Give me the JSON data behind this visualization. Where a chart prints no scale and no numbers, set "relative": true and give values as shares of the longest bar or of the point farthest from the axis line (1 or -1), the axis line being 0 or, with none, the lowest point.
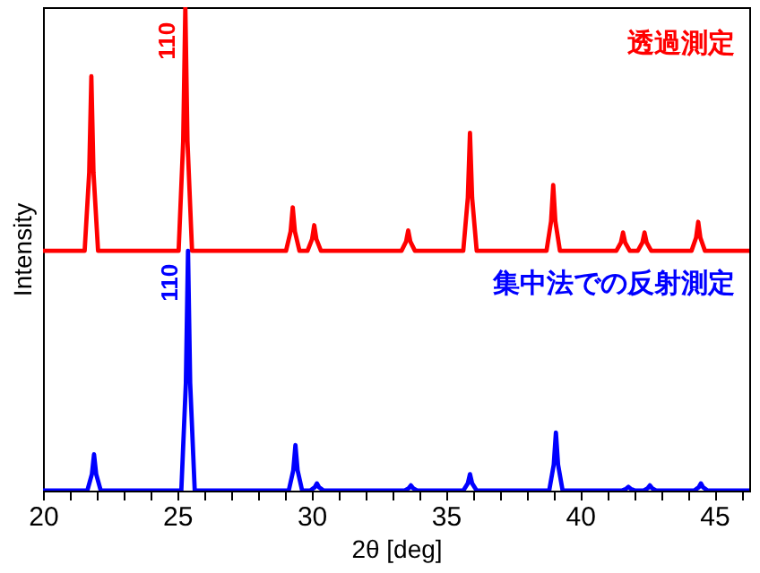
{
  "chart_data": {
    "type": "line",
    "relative": true,
    "xlabel": "2θ [deg]",
    "ylabel": "Intensity",
    "xlim": [
      20,
      46.3
    ],
    "xticks": [
      20,
      {
        "value": 21,
        "label": null
      },
      {
        "value": 22,
        "label": null
      },
      {
        "value": 23,
        "label": null
      },
      {
        "value": 24,
        "label": null
      },
      25,
      {
        "value": 26,
        "label": null
      },
      {
        "value": 27,
        "label": null
      },
      {
        "value": 28,
        "label": null
      },
      {
        "value": 29,
        "label": null
      },
      30,
      {
        "value": 31,
        "label": null
      },
      {
        "value": 32,
        "label": null
      },
      {
        "value": 33,
        "label": null
      },
      {
        "value": 34,
        "label": null
      },
      35,
      {
        "value": 36,
        "label": null
      },
      {
        "value": 37,
        "label": null
      },
      {
        "value": 38,
        "label": null
      },
      {
        "value": 39,
        "label": null
      },
      40,
      {
        "value": 41,
        "label": null
      },
      {
        "value": 42,
        "label": null
      },
      {
        "value": 43,
        "label": null
      },
      {
        "value": 44,
        "label": null
      },
      45,
      {
        "value": 46,
        "label": null
      }
    ],
    "series": [
      {
        "name": "透過測定",
        "color": "#ff0000",
        "x": [
          20,
          21.55,
          21.72,
          21.8,
          21.88,
          22.05,
          25.05,
          25.22,
          25.3,
          25.38,
          25.55,
          29.05,
          29.22,
          29.3,
          29.38,
          29.55,
          29.85,
          30.02,
          30.1,
          30.18,
          30.35,
          33.35,
          33.52,
          33.6,
          33.68,
          33.85,
          35.65,
          35.82,
          35.9,
          35.98,
          36.15,
          38.75,
          38.92,
          39.0,
          39.08,
          39.25,
          41.35,
          41.52,
          41.6,
          41.68,
          41.85,
          42.15,
          42.32,
          42.4,
          42.48,
          42.65,
          44.15,
          44.32,
          44.4,
          44.48,
          44.65,
          46.3
        ],
        "values": [
          0.496,
          0.496,
          0.658,
          0.857,
          0.658,
          0.496,
          0.496,
          0.723,
          1.0,
          0.723,
          0.496,
          0.496,
          0.536,
          0.586,
          0.536,
          0.496,
          0.496,
          0.52,
          0.549,
          0.52,
          0.496,
          0.496,
          0.515,
          0.538,
          0.515,
          0.496,
          0.496,
          0.606,
          0.74,
          0.606,
          0.496,
          0.496,
          0.557,
          0.632,
          0.557,
          0.496,
          0.496,
          0.513,
          0.534,
          0.513,
          0.496,
          0.496,
          0.513,
          0.534,
          0.513,
          0.496,
          0.496,
          0.523,
          0.556,
          0.523,
          0.496,
          0.496
        ]
      },
      {
        "name": "集中法での反射測定",
        "color": "#0000ff",
        "x": [
          20,
          21.65,
          21.82,
          21.9,
          21.98,
          22.15,
          25.15,
          25.32,
          25.4,
          25.48,
          25.65,
          29.15,
          29.32,
          29.4,
          29.48,
          29.65,
          29.95,
          30.12,
          30.2,
          30.28,
          30.45,
          33.45,
          33.62,
          33.7,
          33.78,
          33.95,
          35.65,
          35.82,
          35.9,
          35.98,
          36.15,
          38.85,
          39.02,
          39.1,
          39.18,
          39.35,
          41.55,
          41.72,
          41.8,
          41.88,
          42.05,
          42.35,
          42.52,
          42.6,
          42.68,
          42.85,
          44.25,
          44.42,
          44.5,
          44.58,
          44.75,
          46.3
        ],
        "values": [
          0,
          0,
          0.034,
          0.075,
          0.034,
          0,
          0,
          0.223,
          0.496,
          0.223,
          0,
          0,
          0.042,
          0.094,
          0.042,
          0,
          0,
          0.007,
          0.015,
          0.007,
          0,
          0,
          0.005,
          0.011,
          0.005,
          0,
          0,
          0.015,
          0.034,
          0.015,
          0,
          0,
          0.054,
          0.12,
          0.054,
          0,
          0,
          0.004,
          0.008,
          0.004,
          0,
          0,
          0.005,
          0.011,
          0.005,
          0,
          0,
          0.007,
          0.015,
          0.007,
          0,
          0
        ]
      }
    ],
    "annotations": [
      {
        "text": "110",
        "x": 25.3,
        "y": 0.93
      },
      {
        "text": "110",
        "x": 25.4,
        "y": 0.43
      }
    ]
  }
}
